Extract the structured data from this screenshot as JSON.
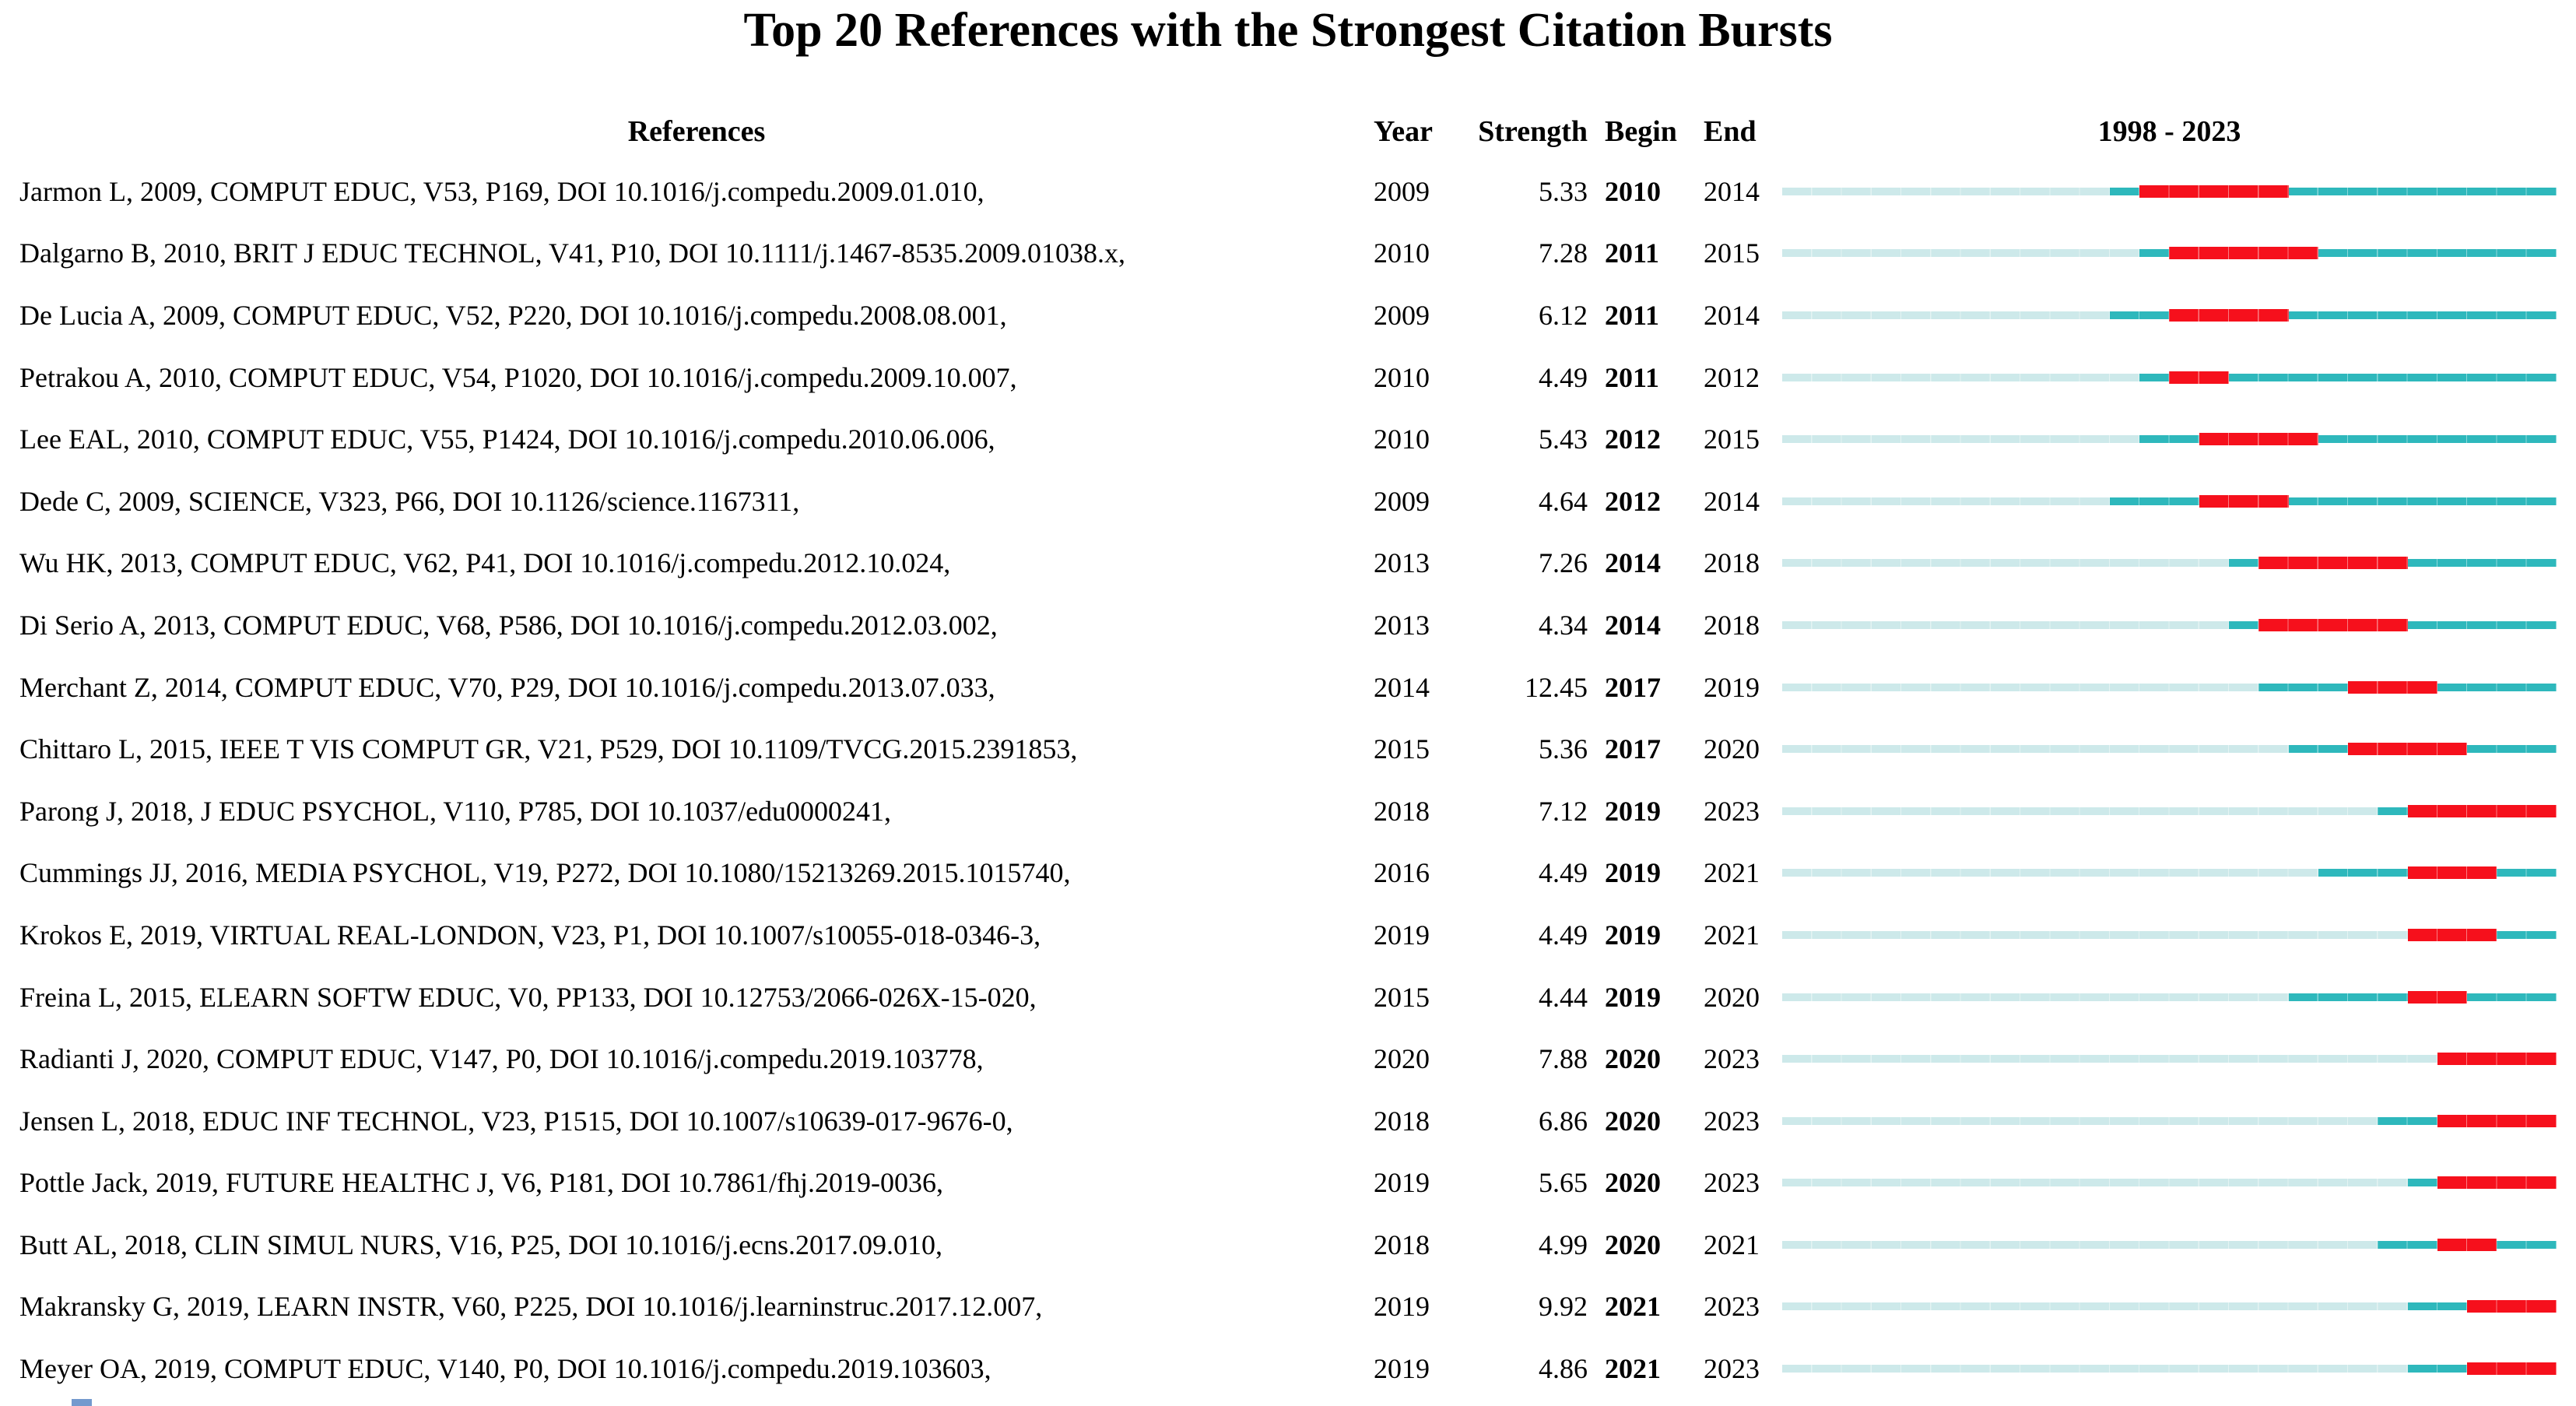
{
  "title": "Top 20 References with the Strongest Citation Bursts",
  "header": {
    "references": "References",
    "year": "Year",
    "strength": "Strength",
    "begin": "Begin",
    "end": "End",
    "period": "1998 - 2023"
  },
  "colors": {
    "pre_publication": "#cde9ea",
    "active": "#2eb8bc",
    "burst": "#f6101c"
  },
  "chart_data": {
    "type": "table",
    "title": "Top 20 References with the Strongest Citation Bursts",
    "columns": [
      "References",
      "Year",
      "Strength",
      "Begin",
      "End",
      "1998 - 2023"
    ],
    "timeline": {
      "start_year": 1998,
      "end_year": 2023
    },
    "bar_encoding": {
      "pale_segment": "years from 1998 until publication year",
      "teal_segment": "publication years outside the burst interval",
      "red_segment": "citation burst interval (Begin to End inclusive)"
    },
    "rows": [
      {
        "reference": "Jarmon L, 2009, COMPUT EDUC, V53, P169, DOI 10.1016/j.compedu.2009.01.010,",
        "year": 2009,
        "strength": "5.33",
        "begin": 2010,
        "end": 2014
      },
      {
        "reference": "Dalgarno B, 2010, BRIT J EDUC TECHNOL, V41, P10, DOI 10.1111/j.1467-8535.2009.01038.x,",
        "year": 2010,
        "strength": "7.28",
        "begin": 2011,
        "end": 2015
      },
      {
        "reference": "De Lucia A, 2009, COMPUT EDUC, V52, P220, DOI 10.1016/j.compedu.2008.08.001,",
        "year": 2009,
        "strength": "6.12",
        "begin": 2011,
        "end": 2014
      },
      {
        "reference": "Petrakou A, 2010, COMPUT EDUC, V54, P1020, DOI 10.1016/j.compedu.2009.10.007,",
        "year": 2010,
        "strength": "4.49",
        "begin": 2011,
        "end": 2012
      },
      {
        "reference": "Lee EAL, 2010, COMPUT EDUC, V55, P1424, DOI 10.1016/j.compedu.2010.06.006,",
        "year": 2010,
        "strength": "5.43",
        "begin": 2012,
        "end": 2015
      },
      {
        "reference": "Dede C, 2009, SCIENCE, V323, P66, DOI 10.1126/science.1167311,",
        "year": 2009,
        "strength": "4.64",
        "begin": 2012,
        "end": 2014
      },
      {
        "reference": "Wu HK, 2013, COMPUT EDUC, V62, P41, DOI 10.1016/j.compedu.2012.10.024,",
        "year": 2013,
        "strength": "7.26",
        "begin": 2014,
        "end": 2018
      },
      {
        "reference": "Di Serio A, 2013, COMPUT EDUC, V68, P586, DOI 10.1016/j.compedu.2012.03.002,",
        "year": 2013,
        "strength": "4.34",
        "begin": 2014,
        "end": 2018
      },
      {
        "reference": "Merchant Z, 2014, COMPUT EDUC, V70, P29, DOI 10.1016/j.compedu.2013.07.033,",
        "year": 2014,
        "strength": "12.45",
        "begin": 2017,
        "end": 2019
      },
      {
        "reference": "Chittaro L, 2015, IEEE T VIS COMPUT GR, V21, P529, DOI 10.1109/TVCG.2015.2391853,",
        "year": 2015,
        "strength": "5.36",
        "begin": 2017,
        "end": 2020
      },
      {
        "reference": "Parong J, 2018, J EDUC PSYCHOL, V110, P785, DOI 10.1037/edu0000241,",
        "year": 2018,
        "strength": "7.12",
        "begin": 2019,
        "end": 2023
      },
      {
        "reference": "Cummings JJ, 2016, MEDIA PSYCHOL, V19, P272, DOI 10.1080/15213269.2015.1015740,",
        "year": 2016,
        "strength": "4.49",
        "begin": 2019,
        "end": 2021
      },
      {
        "reference": "Krokos E, 2019, VIRTUAL REAL-LONDON, V23, P1, DOI 10.1007/s10055-018-0346-3,",
        "year": 2019,
        "strength": "4.49",
        "begin": 2019,
        "end": 2021
      },
      {
        "reference": "Freina L, 2015, ELEARN SOFTW EDUC, V0, PP133, DOI 10.12753/2066-026X-15-020,",
        "year": 2015,
        "strength": "4.44",
        "begin": 2019,
        "end": 2020
      },
      {
        "reference": "Radianti J, 2020, COMPUT EDUC, V147, P0, DOI 10.1016/j.compedu.2019.103778,",
        "year": 2020,
        "strength": "7.88",
        "begin": 2020,
        "end": 2023
      },
      {
        "reference": "Jensen L, 2018, EDUC INF TECHNOL, V23, P1515, DOI 10.1007/s10639-017-9676-0,",
        "year": 2018,
        "strength": "6.86",
        "begin": 2020,
        "end": 2023
      },
      {
        "reference": "Pottle Jack, 2019, FUTURE HEALTHC J, V6, P181, DOI 10.7861/fhj.2019-0036,",
        "year": 2019,
        "strength": "5.65",
        "begin": 2020,
        "end": 2023
      },
      {
        "reference": "Butt AL, 2018, CLIN SIMUL NURS, V16, P25, DOI 10.1016/j.ecns.2017.09.010,",
        "year": 2018,
        "strength": "4.99",
        "begin": 2020,
        "end": 2021
      },
      {
        "reference": "Makransky G, 2019, LEARN INSTR, V60, P225, DOI 10.1016/j.learninstruc.2017.12.007,",
        "year": 2019,
        "strength": "9.92",
        "begin": 2021,
        "end": 2023
      },
      {
        "reference": "Meyer OA, 2019, COMPUT EDUC, V140, P0, DOI 10.1016/j.compedu.2019.103603,",
        "year": 2019,
        "strength": "4.86",
        "begin": 2021,
        "end": 2023
      }
    ]
  }
}
